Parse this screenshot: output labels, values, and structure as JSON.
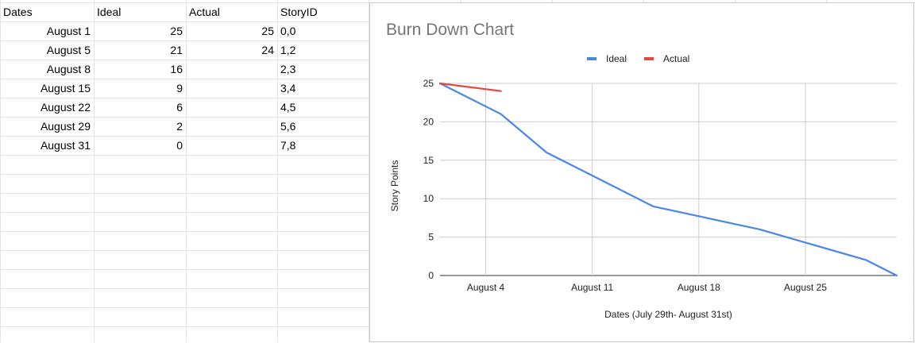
{
  "sheet": {
    "headers": [
      "Dates",
      "Ideal",
      "Actual",
      "StoryID"
    ],
    "rows": [
      {
        "date": "August 1",
        "ideal": "25",
        "actual": "25",
        "story": "0,0"
      },
      {
        "date": "August 5",
        "ideal": "21",
        "actual": "24",
        "story": "1,2"
      },
      {
        "date": "August 8",
        "ideal": "16",
        "actual": "",
        "story": "2,3"
      },
      {
        "date": "August 15",
        "ideal": "9",
        "actual": "",
        "story": "3,4"
      },
      {
        "date": "August 22",
        "ideal": "6",
        "actual": "",
        "story": "4,5"
      },
      {
        "date": "August 29",
        "ideal": "2",
        "actual": "",
        "story": "5,6"
      },
      {
        "date": "August 31",
        "ideal": "0",
        "actual": "",
        "story": "7,8"
      }
    ]
  },
  "chart_data": {
    "type": "line",
    "title": "Burn Down Chart",
    "xlabel": "Dates (July 29th- August 31st)",
    "ylabel": "Story Points",
    "x_tick_labels": [
      "August 4",
      "August 11",
      "August 18",
      "August 25"
    ],
    "x_tick_days": [
      4,
      11,
      18,
      25
    ],
    "xlim_days": [
      1,
      31
    ],
    "ylim": [
      0,
      25
    ],
    "y_ticks": [
      0,
      5,
      10,
      15,
      20,
      25
    ],
    "grid": true,
    "legend_position": "top",
    "series": [
      {
        "name": "Ideal",
        "color": "#4a86e8",
        "x_days": [
          1,
          5,
          8,
          15,
          22,
          29,
          31
        ],
        "values": [
          25,
          21,
          16,
          9,
          6,
          2,
          0
        ]
      },
      {
        "name": "Actual",
        "color": "#e8453c",
        "x_days": [
          1,
          5
        ],
        "values": [
          25,
          24
        ]
      }
    ]
  }
}
